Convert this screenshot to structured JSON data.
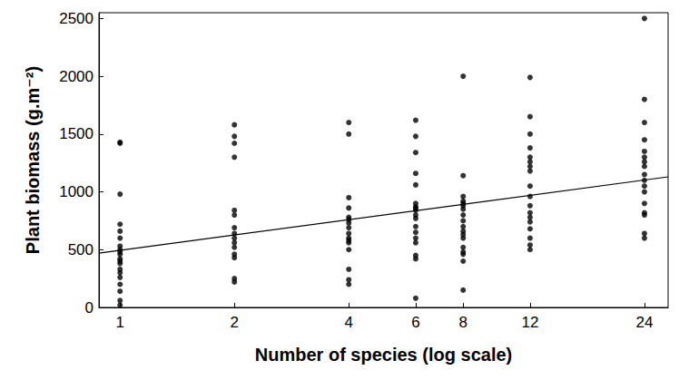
{
  "chart_data": {
    "type": "scatter",
    "x_label": "Number of species (log scale)",
    "y_label": "Plant biomass (g.m⁻²)",
    "log": "x",
    "grid": false,
    "color": "#000000",
    "marker": "circle",
    "xlim": [
      0.88,
      27.7
    ],
    "xticks": [
      1,
      2,
      4,
      6,
      8,
      12,
      24
    ],
    "ylim": [
      0,
      2550
    ],
    "yticks": [
      0,
      500,
      1000,
      1500,
      2000,
      2500
    ],
    "x": [
      1,
      1,
      1,
      1,
      1,
      1,
      1,
      1,
      1,
      1,
      1,
      1,
      1,
      1,
      1,
      1,
      1,
      1,
      1,
      1,
      2,
      2,
      2,
      2,
      2,
      2,
      2,
      2,
      2,
      2,
      2,
      2,
      2,
      2,
      2,
      4,
      4,
      4,
      4,
      4,
      4,
      4,
      4,
      4,
      4,
      4,
      4,
      4,
      4,
      4,
      4,
      6,
      6,
      6,
      6,
      6,
      6,
      6,
      6,
      6,
      6,
      6,
      6,
      6,
      6,
      6,
      6,
      6,
      6,
      8,
      8,
      8,
      8,
      8,
      8,
      8,
      8,
      8,
      8,
      8,
      8,
      8,
      8,
      8,
      8,
      8,
      8,
      12,
      12,
      12,
      12,
      12,
      12,
      12,
      12,
      12,
      12,
      12,
      12,
      12,
      12,
      12,
      12,
      12,
      12,
      24,
      24,
      24,
      24,
      24,
      24,
      24,
      24,
      24,
      24,
      24,
      24,
      24,
      24,
      24,
      24,
      24
    ],
    "values": [
      1420,
      1430,
      980,
      720,
      660,
      600,
      530,
      500,
      480,
      460,
      420,
      400,
      380,
      330,
      300,
      260,
      200,
      140,
      60,
      20,
      1580,
      1480,
      1420,
      1300,
      840,
      800,
      690,
      640,
      600,
      560,
      520,
      460,
      430,
      250,
      220,
      1600,
      1500,
      950,
      860,
      780,
      760,
      730,
      690,
      640,
      600,
      580,
      560,
      500,
      330,
      240,
      200,
      1620,
      1480,
      1340,
      1160,
      1060,
      900,
      870,
      860,
      840,
      800,
      770,
      700,
      650,
      600,
      560,
      450,
      420,
      80,
      2000,
      1140,
      960,
      920,
      900,
      880,
      850,
      800,
      750,
      700,
      660,
      630,
      600,
      520,
      480,
      460,
      400,
      150,
      1990,
      1650,
      1500,
      1380,
      1300,
      1260,
      1220,
      1180,
      1050,
      960,
      880,
      820,
      780,
      740,
      680,
      600,
      540,
      500,
      2500,
      1800,
      1600,
      1450,
      1350,
      1300,
      1260,
      1220,
      1150,
      1100,
      1050,
      1000,
      900,
      820,
      800,
      640,
      600
    ],
    "trend_line": {
      "x": [
        0.88,
        27.7
      ],
      "values": [
        470,
        1130
      ],
      "color": "#000000",
      "line_style": "solid"
    }
  }
}
